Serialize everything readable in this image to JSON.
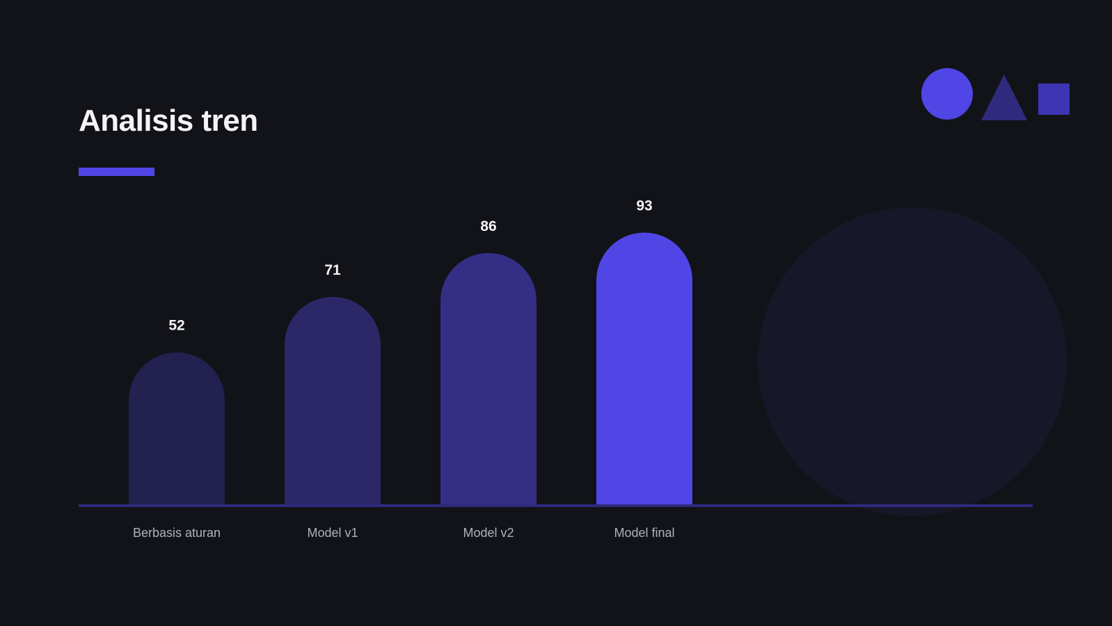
{
  "slide": {
    "title": "Analisis tren"
  },
  "decor": {
    "shapes": [
      "circle-icon",
      "triangle-icon",
      "square-icon"
    ]
  },
  "colors": {
    "background": "#121318",
    "accent": "#5046e5",
    "shape_circle": "#5046e5",
    "shape_triangle": "#2f2a7d",
    "shape_square": "#3d35b3",
    "bg_circle": "#161729",
    "baseline": "#2f2a7d",
    "value_label": "#f4f4f6",
    "category_label": "#b0b1bd"
  },
  "chart_data": {
    "type": "bar",
    "title": "",
    "xlabel": "",
    "ylabel": "",
    "categories": [
      "Berbasis aturan",
      "Model v1",
      "Model v2",
      "Model final"
    ],
    "values": [
      52,
      71,
      86,
      93
    ],
    "bar_colors": [
      "#22214f",
      "#2c2868",
      "#352e85",
      "#5046e5"
    ],
    "data_labels": [
      "52",
      "71",
      "86",
      "93"
    ],
    "grid": false,
    "legend": "none"
  }
}
